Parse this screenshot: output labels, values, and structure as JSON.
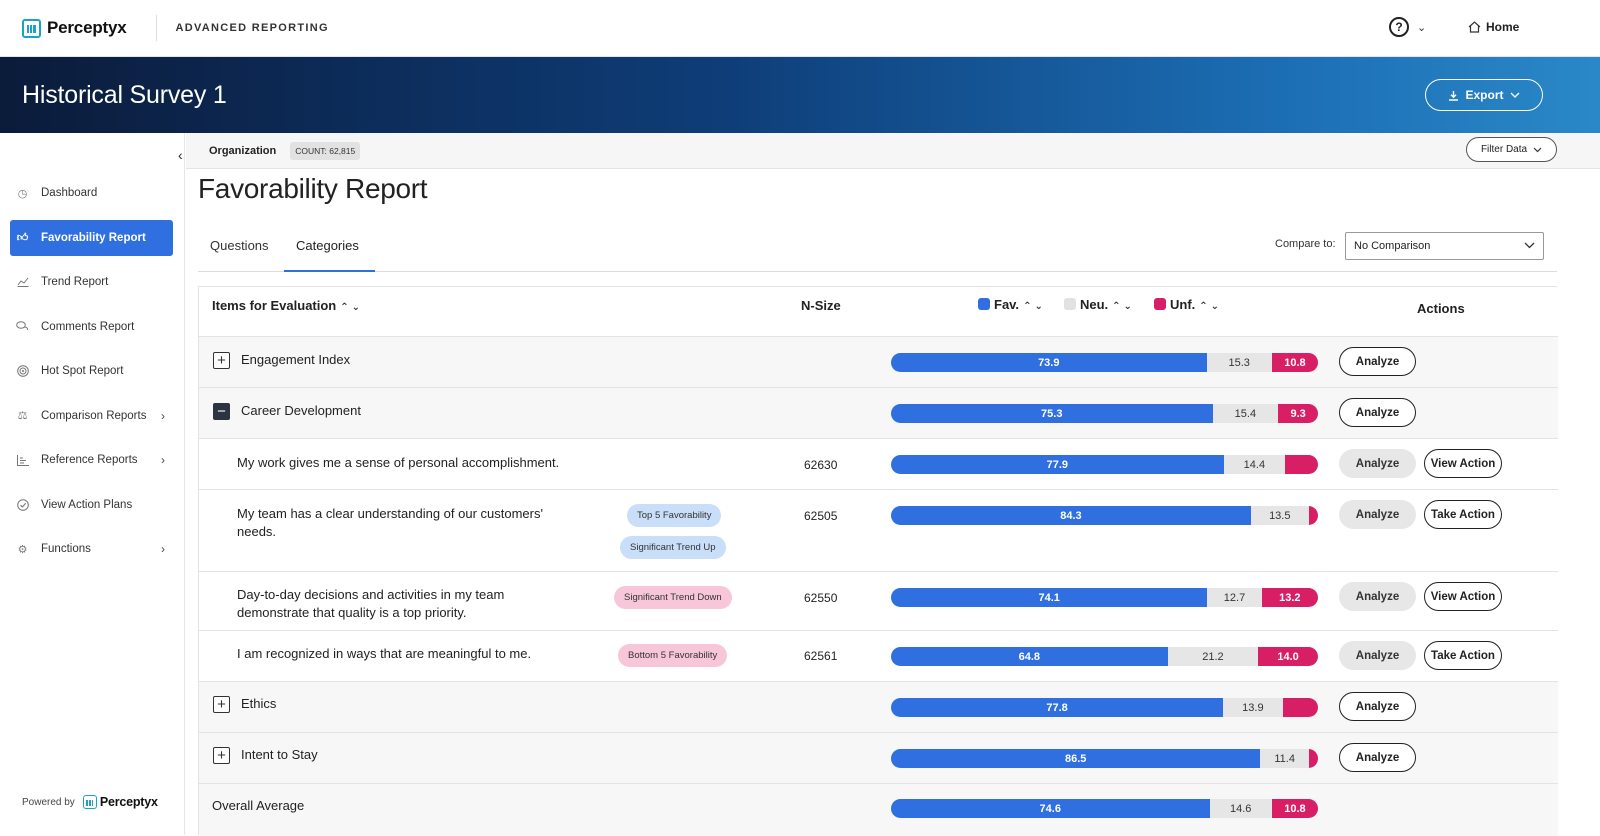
{
  "header": {
    "logo_text": "Perceptyx",
    "app_name": "ADVANCED REPORTING",
    "help_symbol": "?",
    "home_label": "Home"
  },
  "banner": {
    "title": "Historical Survey 1",
    "export_label": "Export"
  },
  "sidebar": {
    "items": [
      {
        "label": "Dashboard",
        "icon": "gauge-icon"
      },
      {
        "label": "Favorability Report",
        "icon": "thumbs-up-icon",
        "active": true
      },
      {
        "label": "Trend Report",
        "icon": "line-chart-icon"
      },
      {
        "label": "Comments Report",
        "icon": "chat-icon"
      },
      {
        "label": "Hot Spot Report",
        "icon": "target-icon"
      },
      {
        "label": "Comparison Reports",
        "icon": "scale-icon",
        "has_submenu": true
      },
      {
        "label": "Reference Reports",
        "icon": "bar-chart-icon",
        "has_submenu": true
      },
      {
        "label": "View Action Plans",
        "icon": "check-circle-icon"
      },
      {
        "label": "Functions",
        "icon": "gear-icon",
        "has_submenu": true
      }
    ],
    "powered_by": "Powered by",
    "powered_logo": "Perceptyx"
  },
  "orgbar": {
    "label": "Organization",
    "count": "COUNT: 62,815",
    "filter_label": "Filter Data"
  },
  "page": {
    "title": "Favorability Report",
    "tabs": [
      {
        "label": "Questions",
        "active": false
      },
      {
        "label": "Categories",
        "active": true
      }
    ],
    "compare_label": "Compare to:",
    "compare_value": "No Comparison"
  },
  "table": {
    "headers": {
      "items": "Items for Evaluation",
      "nsize": "N-Size",
      "fav": "Fav.",
      "neu": "Neu.",
      "unf": "Unf.",
      "actions": "Actions"
    },
    "colors": {
      "fav": "#2f6fdf",
      "neu": "#e6e6e6",
      "unf": "#d81f66"
    },
    "rows": [
      {
        "type": "category",
        "label": "Engagement Index",
        "expanded": false,
        "fav": 73.9,
        "neu": 15.3,
        "unf": 10.8,
        "fav_text": "73.9",
        "neu_text": "15.3",
        "unf_text": "10.8",
        "analyze": "Analyze"
      },
      {
        "type": "category",
        "label": "Career Development",
        "expanded": true,
        "fav": 75.3,
        "neu": 15.4,
        "unf": 9.3,
        "fav_text": "75.3",
        "neu_text": "15.4",
        "unf_text": "9.3",
        "analyze": "Analyze"
      },
      {
        "type": "item",
        "label": "My work gives me a sense of personal accomplishment.",
        "nsize": "62630",
        "fav": 77.9,
        "neu": 14.4,
        "unf": 7.7,
        "fav_text": "77.9",
        "neu_text": "14.4",
        "unf_text": "",
        "analyze": "Analyze",
        "action": "View Action"
      },
      {
        "type": "item",
        "label": "My team has a clear understanding of our customers' needs.",
        "nsize": "62505",
        "tags": [
          "Top 5 Favorability",
          "Significant Trend Up"
        ],
        "fav": 84.3,
        "neu": 13.5,
        "unf": 2.2,
        "fav_text": "84.3",
        "neu_text": "13.5",
        "unf_text": "",
        "analyze": "Analyze",
        "action": "Take Action"
      },
      {
        "type": "item",
        "label": "Day-to-day decisions and activities in my team demonstrate that quality is a top priority.",
        "nsize": "62550",
        "tags": [
          "Significant Trend Down"
        ],
        "fav": 74.1,
        "neu": 12.7,
        "unf": 13.2,
        "fav_text": "74.1",
        "neu_text": "12.7",
        "unf_text": "13.2",
        "analyze": "Analyze",
        "action": "View Action"
      },
      {
        "type": "item",
        "label": "I am recognized in ways that are meaningful to me.",
        "nsize": "62561",
        "tags": [
          "Bottom 5 Favorability"
        ],
        "fav": 64.8,
        "neu": 21.2,
        "unf": 14.0,
        "fav_text": "64.8",
        "neu_text": "21.2",
        "unf_text": "14.0",
        "analyze": "Analyze",
        "action": "Take Action"
      },
      {
        "type": "category",
        "label": "Ethics",
        "expanded": false,
        "fav": 77.8,
        "neu": 13.9,
        "unf": 8.3,
        "fav_text": "77.8",
        "neu_text": "13.9",
        "unf_text": "",
        "analyze": "Analyze"
      },
      {
        "type": "category",
        "label": "Intent to Stay",
        "expanded": false,
        "fav": 86.5,
        "neu": 11.4,
        "unf": 2.1,
        "fav_text": "86.5",
        "neu_text": "11.4",
        "unf_text": "",
        "analyze": "Analyze"
      },
      {
        "type": "overall",
        "label": "Overall Average",
        "fav": 74.6,
        "neu": 14.6,
        "unf": 10.8,
        "fav_text": "74.6",
        "neu_text": "14.6",
        "unf_text": "10.8"
      }
    ]
  }
}
